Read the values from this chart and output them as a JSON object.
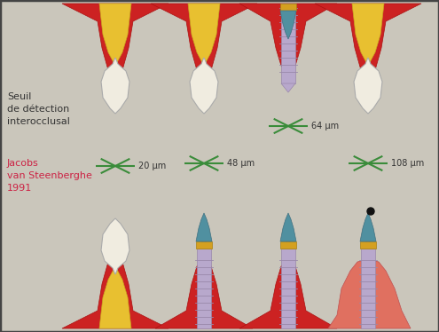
{
  "background_color": "#cac6bb",
  "border_color": "#444444",
  "text_seuil": "Seuil\nde détection\ninterocclusal",
  "text_author": "Jacobs\nvan Steenberghe\n1991",
  "text_author_color": "#cc2244",
  "text_seuil_color": "#333333",
  "measurements": [
    "20 µm",
    "48 µm",
    "64 µm",
    "108 µm"
  ],
  "measurement_color": "#333333",
  "line_color": "#3a8c3a",
  "red_jaw": "#cc2222",
  "red_jaw_edge": "#aa1111",
  "yellow": "#e8c030",
  "white_crown": "#f0ece0",
  "white_crown_edge": "#aaaaaa",
  "gold": "#d4a020",
  "teal": "#5090a0",
  "implant_body": "#b8a8cc",
  "implant_edge": "#9988aa",
  "pink_gum": "#e07060"
}
